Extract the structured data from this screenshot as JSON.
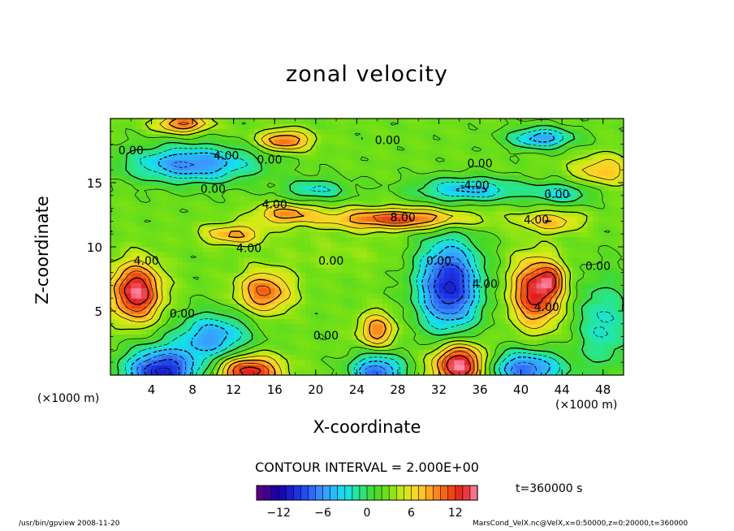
{
  "chart_data": {
    "type": "heatmap",
    "title": "zonal velocity",
    "xlabel": "X-coordinate",
    "ylabel": "Z-coordinate",
    "x_unit_label": "(×1000 m)",
    "x_ticks": [
      4,
      8,
      12,
      16,
      20,
      24,
      28,
      32,
      36,
      40,
      44,
      48
    ],
    "y_ticks": [
      5,
      10,
      15
    ],
    "xlim": [
      0,
      50
    ],
    "ylim": [
      0,
      20
    ],
    "contour_interval_label": "CONTOUR INTERVAL = 2.000E+00",
    "time_label": "t=360000 s",
    "colorbar": {
      "ticks": [
        -12,
        -6,
        0,
        6,
        12
      ],
      "range": [
        -15,
        15
      ]
    },
    "contour_labels": [
      {
        "text": "0.00",
        "x": 2,
        "y": 17.2
      },
      {
        "text": "4.00",
        "x": 11.3,
        "y": 16.8
      },
      {
        "text": "0.00",
        "x": 15.5,
        "y": 16.5
      },
      {
        "text": "0.00",
        "x": 27,
        "y": 18
      },
      {
        "text": "0.00",
        "x": 36,
        "y": 16.2
      },
      {
        "text": "-4.00",
        "x": 35.5,
        "y": 14.5
      },
      {
        "text": "0.00",
        "x": 10,
        "y": 14.2
      },
      {
        "text": "4.00",
        "x": 16,
        "y": 13
      },
      {
        "text": "0.00",
        "x": 43.5,
        "y": 13.8
      },
      {
        "text": "8.00",
        "x": 28.5,
        "y": 12
      },
      {
        "text": "4.00",
        "x": 41.5,
        "y": 11.8
      },
      {
        "text": "4.00",
        "x": 13.5,
        "y": 9.6
      },
      {
        "text": "4.00",
        "x": 3.5,
        "y": 8.6
      },
      {
        "text": "0.00",
        "x": 21.5,
        "y": 8.6
      },
      {
        "text": "0.00",
        "x": 32,
        "y": 8.6
      },
      {
        "text": "0.00",
        "x": 47.5,
        "y": 8.2
      },
      {
        "text": "4.00",
        "x": 36.5,
        "y": 6.8
      },
      {
        "text": "0.00",
        "x": 7,
        "y": 4.5
      },
      {
        "text": "4.00",
        "x": 42.5,
        "y": 5
      },
      {
        "text": "0.00",
        "x": 21,
        "y": 2.8
      }
    ],
    "features": [
      {
        "x": 2.5,
        "y": 6.5,
        "sx": 2.4,
        "sy": 2.2,
        "v": 12
      },
      {
        "x": 15,
        "y": 6.5,
        "sx": 2.6,
        "sy": 1.6,
        "v": 8
      },
      {
        "x": 26,
        "y": 3.5,
        "sx": 1.8,
        "sy": 1.4,
        "v": 7
      },
      {
        "x": 33,
        "y": 7,
        "sx": 3,
        "sy": 3.5,
        "v": -13
      },
      {
        "x": 41.5,
        "y": 6.5,
        "sx": 2.4,
        "sy": 2.6,
        "v": 11
      },
      {
        "x": 43,
        "y": 7.5,
        "sx": 1.2,
        "sy": 1,
        "v": 5
      },
      {
        "x": 10,
        "y": 3,
        "sx": 3.5,
        "sy": 1.8,
        "v": -8
      },
      {
        "x": 5,
        "y": 0.3,
        "sx": 3.5,
        "sy": 1.8,
        "v": -13
      },
      {
        "x": 13.5,
        "y": 0.3,
        "sx": 3,
        "sy": 1.3,
        "v": 11
      },
      {
        "x": 26,
        "y": 0.3,
        "sx": 2.5,
        "sy": 1.4,
        "v": -10
      },
      {
        "x": 34,
        "y": 0.8,
        "sx": 2.5,
        "sy": 1.7,
        "v": 13
      },
      {
        "x": 40.5,
        "y": 0.5,
        "sx": 3.5,
        "sy": 1.4,
        "v": -10
      },
      {
        "x": 48,
        "y": 4,
        "sx": 2.5,
        "sy": 3.5,
        "v": -5
      },
      {
        "x": 28,
        "y": 12.2,
        "sx": 7,
        "sy": 0.8,
        "v": 9
      },
      {
        "x": 17,
        "y": 12.6,
        "sx": 3,
        "sy": 0.8,
        "v": 6
      },
      {
        "x": 12,
        "y": 11,
        "sx": 3,
        "sy": 0.8,
        "v": 6
      },
      {
        "x": 43,
        "y": 12,
        "sx": 3,
        "sy": 0.8,
        "v": 5
      },
      {
        "x": 35,
        "y": 14.5,
        "sx": 5,
        "sy": 0.9,
        "v": -7
      },
      {
        "x": 44,
        "y": 14.2,
        "sx": 3,
        "sy": 0.8,
        "v": -5
      },
      {
        "x": 8,
        "y": 16.5,
        "sx": 6,
        "sy": 1.4,
        "v": -9
      },
      {
        "x": 20,
        "y": 14.5,
        "sx": 3,
        "sy": 0.8,
        "v": -5
      },
      {
        "x": 17,
        "y": 18.3,
        "sx": 2.5,
        "sy": 0.8,
        "v": 8
      },
      {
        "x": 7,
        "y": 19.6,
        "sx": 2.5,
        "sy": 0.7,
        "v": 8
      },
      {
        "x": 42,
        "y": 18.5,
        "sx": 3,
        "sy": 0.8,
        "v": -8
      },
      {
        "x": 48,
        "y": 16,
        "sx": 3,
        "sy": 1.2,
        "v": 5
      },
      {
        "x": 22,
        "y": 9.5,
        "sx": 6,
        "sy": 1.5,
        "v": 1
      }
    ],
    "base_value": 2.5
  },
  "labels": {
    "footer_left": "/usr/bin/gpview  2008-11-20",
    "footer_right": "MarsCond_VelX.nc@VelX,x=0:50000,z=0:20000,t=360000"
  }
}
